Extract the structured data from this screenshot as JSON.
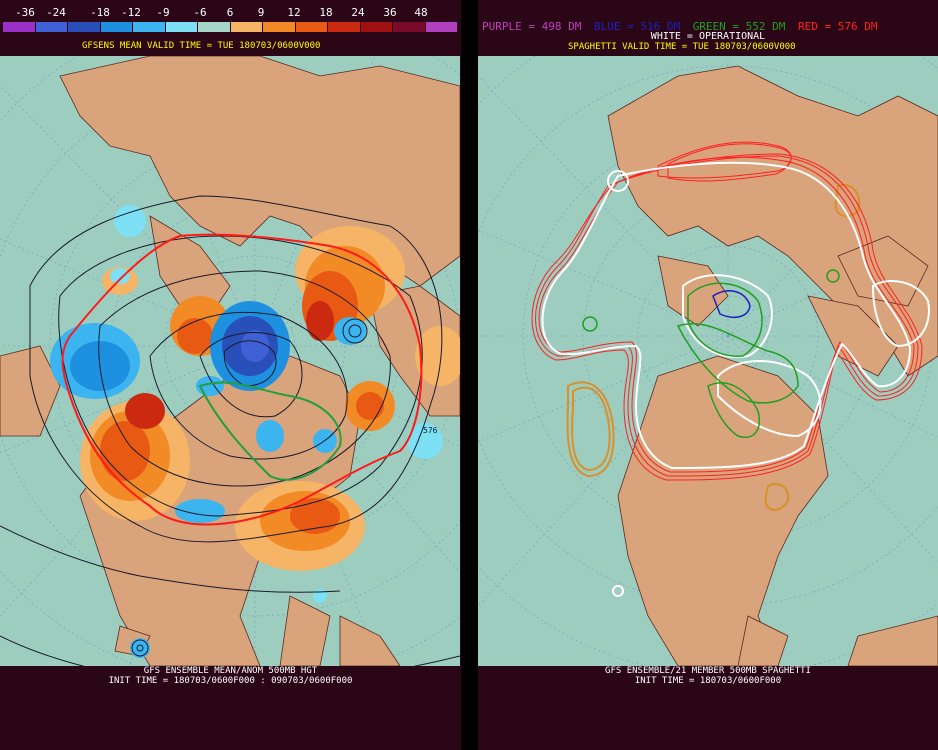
{
  "left_panel": {
    "colorbar": {
      "labels": [
        "-36",
        "-24",
        "-18",
        "-12",
        "-9",
        "-6",
        "6",
        "9",
        "12",
        "18",
        "24",
        "36",
        "48"
      ],
      "colors": [
        "#9b30c8",
        "#4060d8",
        "#2850b8",
        "#1e90e0",
        "#3cb4f0",
        "#7de0f5",
        "#a5d6c8",
        "#f5b466",
        "#f28a26",
        "#e85a14",
        "#cc2a10",
        "#a01010",
        "#7a0a2a",
        "#b040c0"
      ]
    },
    "title": "GFSENS MEAN VALID TIME = TUE 180703/0600V000",
    "footer_line1": "GFS ENSEMBLE MEAN/ANOM 500MB HGT",
    "footer_line2": "INIT TIME = 180703/0600F000 : 090703/0600F000",
    "contour_label": "576"
  },
  "right_panel": {
    "legend": [
      {
        "text": "PURPLE = 498 DM",
        "color": "#c040c0"
      },
      {
        "text": "BLUE = 516 DM",
        "color": "#2020c0"
      },
      {
        "text": "GREEN = 552 DM",
        "color": "#20a020"
      },
      {
        "text": "RED = 576 DM",
        "color": "#ff2020"
      }
    ],
    "operational": "WHITE = OPERATIONAL",
    "title": "SPAGHETTI VALID TIME = TUE 180703/0600V000",
    "footer_line1": "GFS ENSEMBLE/21 MEMBER 500MB SPAGHETTI",
    "footer_line2": "INIT TIME = 180703/0600F000"
  },
  "colors": {
    "background": "#2a0616",
    "ocean": "#9ccdbf",
    "land": "#d9a37c",
    "title": "#ffff00"
  }
}
